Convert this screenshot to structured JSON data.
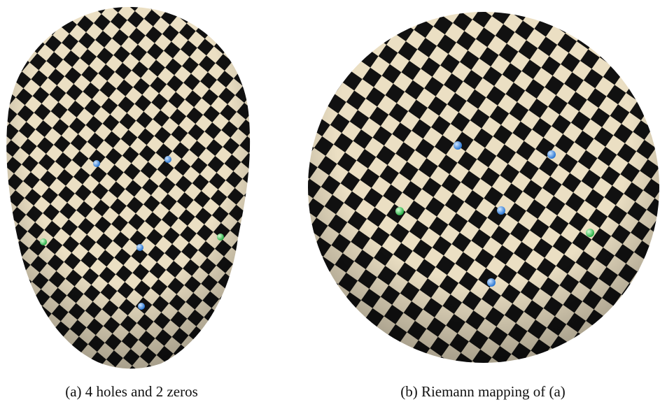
{
  "figure": {
    "panels": [
      {
        "caption": "(a) 4 holes and 2 zeros"
      },
      {
        "caption": "(b) Riemann mapping of (a)"
      }
    ]
  }
}
